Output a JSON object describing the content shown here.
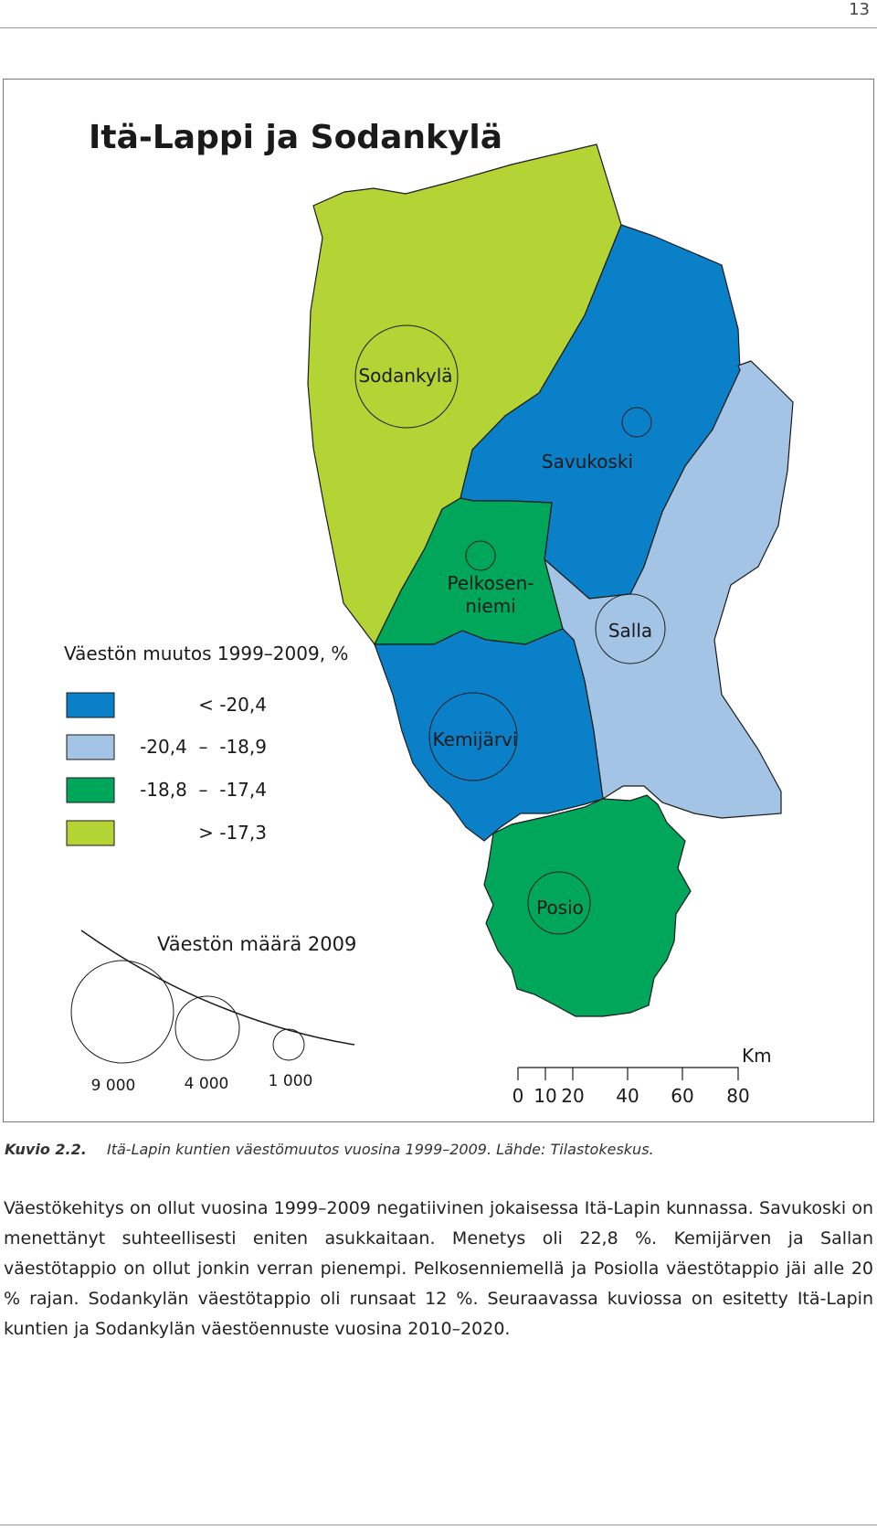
{
  "page_number": "13",
  "map": {
    "title": "Itä-Lappi ja Sodankylä",
    "municipalities": [
      {
        "name": "Sodankylä",
        "category": "> -17,3"
      },
      {
        "name": "Savukoski",
        "category": "< -20,4"
      },
      {
        "name": "Pelkosen-",
        "name_line2": "niemi",
        "category": "-18,8 – -17,4"
      },
      {
        "name": "Salla",
        "category": "-20,4 – -18,9"
      },
      {
        "name": "Kemijärvi",
        "category": "< -20,4"
      },
      {
        "name": "Posio",
        "category": "-18,8 – -17,4"
      }
    ],
    "legend_change": {
      "title": "Väestön muutos 1999–2009, %",
      "items": [
        {
          "label": "< -20,4",
          "color": "#0a80c8"
        },
        {
          "label": "-20,4  –  -18,9",
          "color": "#a3c4e4"
        },
        {
          "label": "-18,8  –  -17,4",
          "color": "#00a659"
        },
        {
          "label": "> -17,3",
          "color": "#b4d334"
        }
      ]
    },
    "legend_population": {
      "title": "Väestön määrä 2009",
      "circles": [
        {
          "label": "9 000",
          "value": 9000
        },
        {
          "label": "4 000",
          "value": 4000
        },
        {
          "label": "1 000",
          "value": 1000
        }
      ]
    },
    "scale_bar": {
      "unit": "Km",
      "ticks": [
        "0",
        "10",
        "20",
        "40",
        "60",
        "80"
      ]
    }
  },
  "caption": {
    "label": "Kuvio 2.2.",
    "text": "Itä-Lapin kuntien väestömuutos vuosina 1999–2009. Lähde: Tilastokeskus."
  },
  "body": {
    "paragraph": "Väestökehitys on ollut vuosina 1999–2009 negatiivinen jokaisessa Itä-Lapin kunnassa. Savukoski on menettänyt suhteellisesti eniten asukkaitaan. Menetys oli 22,8 %. Kemijärven ja Sallan väestötappio on ollut jonkin verran pienempi. Pelkosenniemellä ja Posiolla väestötappio jäi alle 20 % rajan. Sodankylän väestötappio oli runsaat 12 %. Seuraavassa kuviossa on esitetty Itä-Lapin kuntien ja Sodankylän väestöennuste vuosina 2010–2020."
  }
}
